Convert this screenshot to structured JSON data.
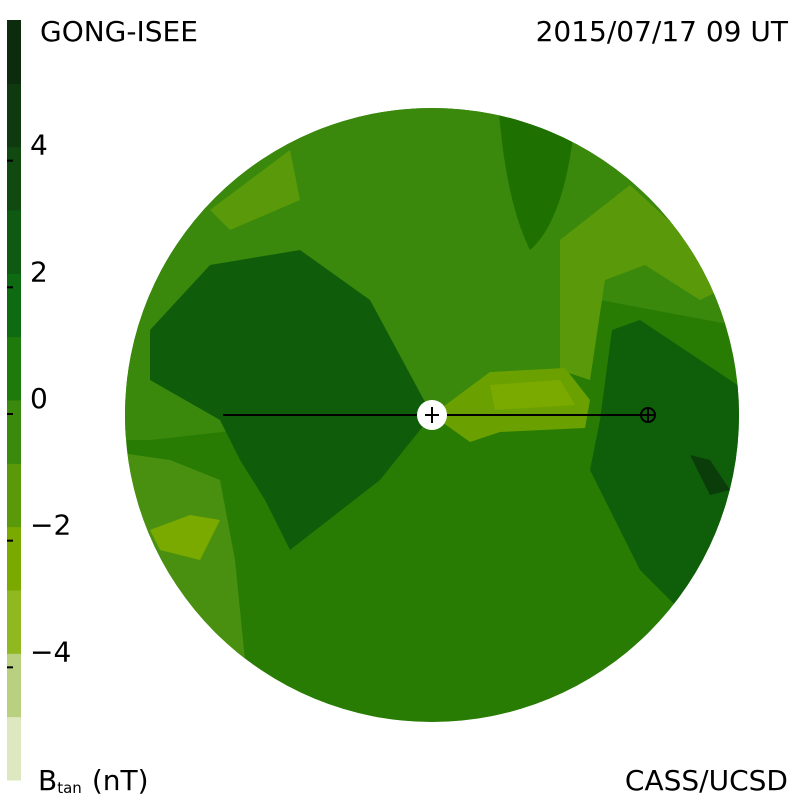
{
  "chart_data": {
    "type": "heatmap",
    "title": "GONG-ISEE",
    "subtitle": "2015/07/17 09 UT",
    "credit": "CASS/UCSD",
    "colorbar": {
      "label": {
        "symbol": "B",
        "subscript": "tan",
        "unit": "(nT)"
      },
      "lim": [
        -6,
        6
      ],
      "ticks": [
        {
          "value": -4,
          "label": "−4"
        },
        {
          "value": -2,
          "label": "−2"
        },
        0,
        2,
        4
      ],
      "colors": [
        "#dde8c0",
        "#b8d080",
        "#90b820",
        "#7aaa00",
        "#5a9a0a",
        "#3a8a0e",
        "#1e7a0a",
        "#0f6b12",
        "#0e5a12",
        "#104a10",
        "#0f3a10",
        "#0d2b0d"
      ]
    }
  }
}
